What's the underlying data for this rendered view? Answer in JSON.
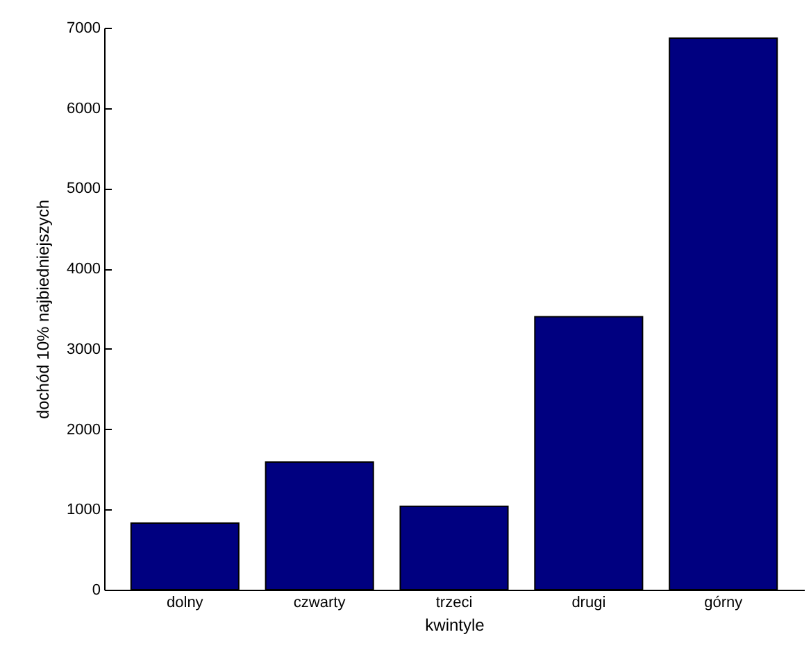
{
  "chart_data": {
    "type": "bar",
    "xlabel": "kwintyle",
    "ylabel": "dochód 10% najbiedniejszych",
    "categories": [
      "dolny",
      "czwarty",
      "trzeci",
      "drugi",
      "górny"
    ],
    "values": [
      830,
      1590,
      1040,
      3400,
      6870
    ],
    "color": "#000080",
    "ylim": [
      0,
      7000
    ],
    "yticks": [
      0,
      1000,
      2000,
      3000,
      4000,
      5000,
      6000,
      7000
    ],
    "grid": false
  }
}
